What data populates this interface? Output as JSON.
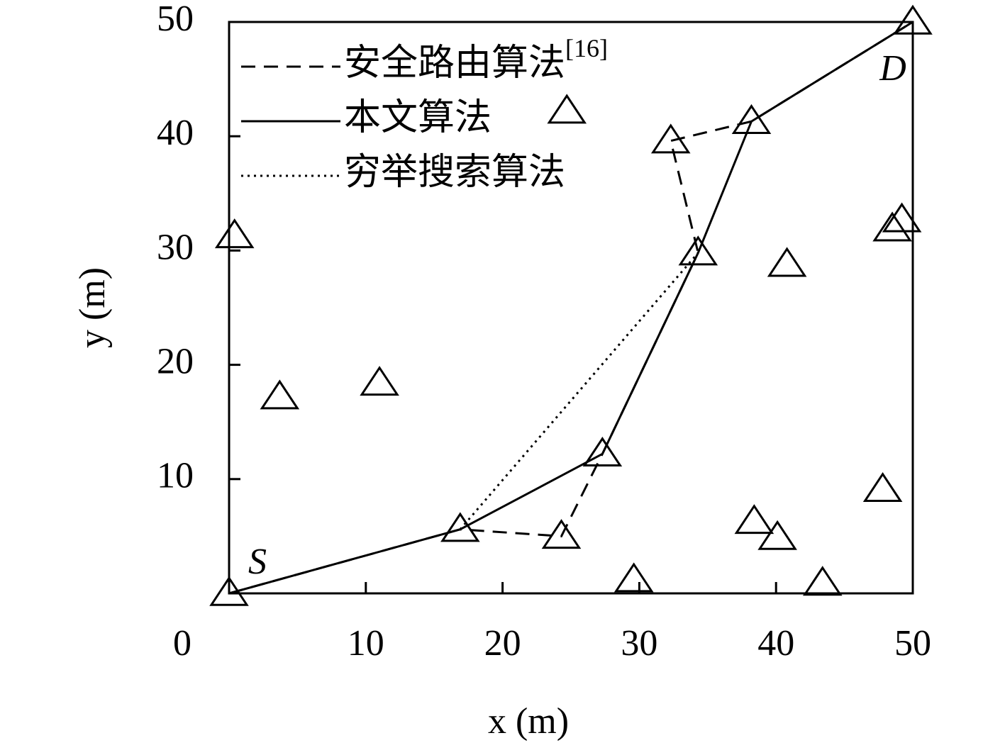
{
  "chart_data": {
    "type": "line",
    "xlabel": "x (m)",
    "ylabel": "y (m)",
    "xlim": [
      0,
      50
    ],
    "ylim": [
      0,
      50
    ],
    "xticks": [
      0,
      10,
      20,
      30,
      40,
      50
    ],
    "yticks": [
      10,
      20,
      30,
      40,
      50
    ],
    "legend": "upper left",
    "nodes": {
      "color": "#000000",
      "x": [
        0,
        0.4,
        3.7,
        11.0,
        16.9,
        24.3,
        27.3,
        29.6,
        32.3,
        34.3,
        24.7,
        38.2,
        40.8,
        38.4,
        40.1,
        43.4,
        47.8,
        48.5,
        49.2,
        50
      ],
      "y": [
        0,
        31.3,
        17.2,
        18.4,
        5.6,
        5.0,
        12.2,
        1.2,
        39.6,
        29.8,
        42.2,
        41.3,
        28.8,
        6.3,
        4.9,
        0.9,
        9.1,
        31.9,
        32.7,
        50
      ]
    },
    "series": [
      {
        "name": "安全路由算法",
        "citation": "[16]",
        "color": "#000000",
        "style": "dashed",
        "x": [
          0,
          16.9,
          24.3,
          27.3,
          34.3,
          32.3,
          38.2,
          50
        ],
        "y": [
          0,
          5.6,
          5.0,
          12.2,
          29.8,
          39.6,
          41.3,
          50
        ]
      },
      {
        "name": "本文算法",
        "color": "#000000",
        "style": "solid",
        "x": [
          0,
          16.9,
          27.3,
          34.3,
          38.2,
          50
        ],
        "y": [
          0,
          5.6,
          12.2,
          29.8,
          41.3,
          50
        ]
      },
      {
        "name": "穷举搜索算法",
        "color": "#000000",
        "style": "dotted",
        "x": [
          16.9,
          34.3
        ],
        "y": [
          5.6,
          29.8
        ]
      }
    ],
    "annotations": [
      {
        "text": "S",
        "x": 0,
        "y": 0
      },
      {
        "text": "D",
        "x": 50,
        "y": 50
      }
    ]
  }
}
